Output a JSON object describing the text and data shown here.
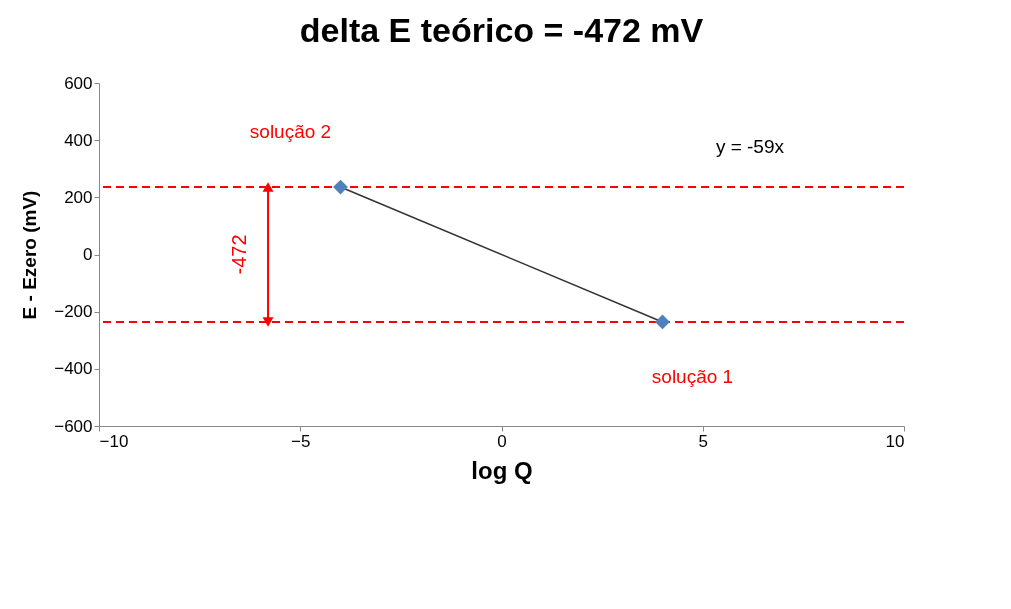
{
  "chart_data": {
    "type": "line",
    "title": "delta E teórico = -472 mV",
    "xlabel": "log Q",
    "ylabel": "E - Ezero (mV)",
    "x": [
      -4,
      4
    ],
    "series": [
      {
        "color": "#4f81bd",
        "values": [
          236,
          -236
        ]
      }
    ],
    "marker": "diamond",
    "line_style": "solid",
    "xlim": [
      -10,
      10
    ],
    "xticks": [
      -10,
      -5,
      0,
      5,
      10
    ],
    "ylim": [
      -600,
      600
    ],
    "yticks": [
      -600,
      -400,
      -200,
      0,
      200,
      400,
      600
    ],
    "grid": false,
    "ref_lines": [
      {
        "axis": "y",
        "value": 236,
        "color": "#ff0000",
        "line_style": "dashed"
      },
      {
        "axis": "y",
        "value": -236,
        "color": "#ff0000",
        "line_style": "dashed"
      }
    ],
    "annotations": [
      {
        "text": "solução 2",
        "x": -4,
        "y": 236
      },
      {
        "text": "solução 1",
        "x": 4,
        "y": -236
      },
      "y = -59x",
      "-472"
    ]
  }
}
